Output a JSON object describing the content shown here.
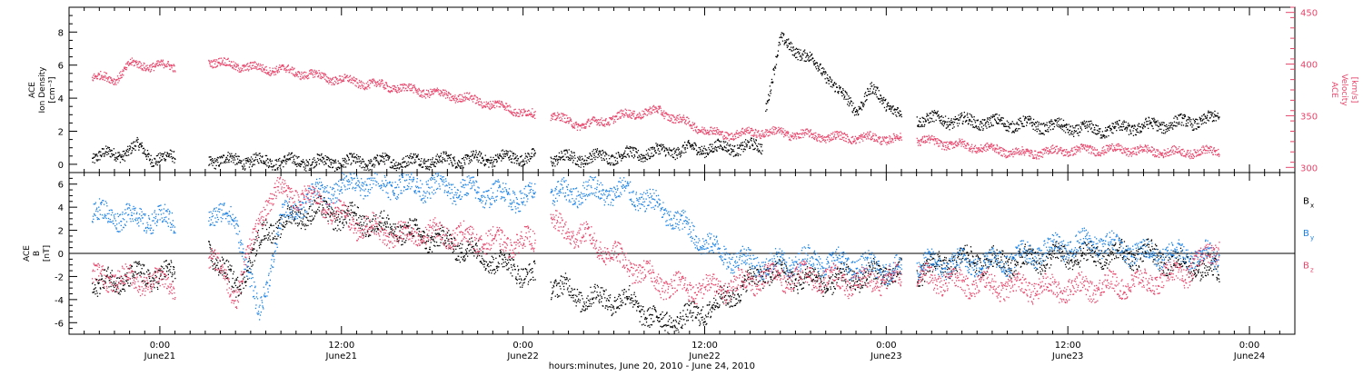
{
  "chart_data": {
    "type": "scatter",
    "x_axis": {
      "label": "hours:minutes, June 20, 2010 - June 24, 2010",
      "range_hours": [
        -6,
        75
      ],
      "ticks": [
        {
          "h": 0,
          "time": "0:00",
          "date": "June21"
        },
        {
          "h": 12,
          "time": "12:00",
          "date": "June21"
        },
        {
          "h": 24,
          "time": "0:00",
          "date": "June22"
        },
        {
          "h": 36,
          "time": "12:00",
          "date": "June22"
        },
        {
          "h": 48,
          "time": "0:00",
          "date": "June23"
        },
        {
          "h": 60,
          "time": "12:00",
          "date": "June23"
        },
        {
          "h": 72,
          "time": "0:00",
          "date": "June24"
        }
      ]
    },
    "panels": [
      {
        "name": "plasma",
        "left_axis": {
          "label_lines": [
            "ACE",
            "Ion Density"
          ],
          "unit": "[cm⁻³]",
          "range": [
            -0.5,
            9.5
          ],
          "ticks": [
            0,
            2,
            4,
            6,
            8
          ],
          "color": "#000000"
        },
        "right_axis": {
          "label_lines": [
            "ACE",
            "Velocity"
          ],
          "unit": "[km/s]",
          "range": [
            295,
            455
          ],
          "ticks": [
            300,
            350,
            400,
            450
          ],
          "color": "#e8456b"
        },
        "series": [
          {
            "axis": "left",
            "color": "#000000",
            "segments": [
              {
                "t0": -4.5,
                "t1": 1.0,
                "points": [
                  [
                    -4.5,
                    0.5
                  ],
                  [
                    -2.5,
                    0.7
                  ],
                  [
                    -1.5,
                    1.1
                  ],
                  [
                    -0.5,
                    0.4
                  ],
                  [
                    1.0,
                    0.4
                  ]
                ]
              },
              {
                "t0": 3.2,
                "t1": 24.8,
                "points": [
                  [
                    3.2,
                    0.3
                  ],
                  [
                    8,
                    0.2
                  ],
                  [
                    12,
                    0.15
                  ],
                  [
                    16,
                    0.2
                  ],
                  [
                    20,
                    0.3
                  ],
                  [
                    24.8,
                    0.5
                  ]
                ]
              },
              {
                "t0": 25.8,
                "t1": 39.8,
                "points": [
                  [
                    25.8,
                    0.4
                  ],
                  [
                    28,
                    0.4
                  ],
                  [
                    31,
                    0.6
                  ],
                  [
                    33,
                    0.8
                  ],
                  [
                    36,
                    1.0
                  ],
                  [
                    39.8,
                    1.1
                  ]
                ]
              },
              {
                "t0": 40.0,
                "t1": 49.0,
                "points": [
                  [
                    40.0,
                    3.5
                  ],
                  [
                    41,
                    7.5
                  ],
                  [
                    42,
                    7.0
                  ],
                  [
                    43,
                    6.3
                  ],
                  [
                    44,
                    5.5
                  ],
                  [
                    45,
                    4.2
                  ],
                  [
                    46,
                    3.4
                  ],
                  [
                    47,
                    4.5
                  ],
                  [
                    49.0,
                    3.0
                  ]
                ]
              },
              {
                "t0": 50.0,
                "t1": 70.0,
                "points": [
                  [
                    50.0,
                    2.8
                  ],
                  [
                    54,
                    2.6
                  ],
                  [
                    58,
                    2.4
                  ],
                  [
                    62,
                    2.1
                  ],
                  [
                    66,
                    2.4
                  ],
                  [
                    70,
                    2.8
                  ]
                ]
              }
            ]
          },
          {
            "axis": "right",
            "color": "#e8456b",
            "segments": [
              {
                "t0": -4.5,
                "t1": 1.0,
                "points": [
                  [
                    -4.5,
                    388
                  ],
                  [
                    -3,
                    386
                  ],
                  [
                    -2,
                    400
                  ],
                  [
                    1.0,
                    398
                  ]
                ]
              },
              {
                "t0": 3.2,
                "t1": 24.8,
                "points": [
                  [
                    3.2,
                    403
                  ],
                  [
                    6,
                    397
                  ],
                  [
                    8,
                    395
                  ],
                  [
                    12,
                    385
                  ],
                  [
                    16,
                    377
                  ],
                  [
                    20,
                    368
                  ],
                  [
                    23,
                    358
                  ],
                  [
                    24.8,
                    350
                  ]
                ]
              },
              {
                "t0": 25.8,
                "t1": 49.0,
                "points": [
                  [
                    25.8,
                    350
                  ],
                  [
                    28,
                    341
                  ],
                  [
                    31,
                    352
                  ],
                  [
                    33,
                    355
                  ],
                  [
                    35,
                    342
                  ],
                  [
                    37,
                    332
                  ],
                  [
                    40,
                    335
                  ],
                  [
                    44,
                    330
                  ],
                  [
                    49.0,
                    328
                  ]
                ]
              },
              {
                "t0": 50.0,
                "t1": 70.0,
                "points": [
                  [
                    50.0,
                    327
                  ],
                  [
                    54,
                    320
                  ],
                  [
                    57,
                    314
                  ],
                  [
                    60,
                    317
                  ],
                  [
                    63,
                    318
                  ],
                  [
                    67,
                    315
                  ],
                  [
                    70,
                    316
                  ]
                ]
              }
            ]
          }
        ]
      },
      {
        "name": "magnetic",
        "left_axis": {
          "label_lines": [
            "ACE",
            "B"
          ],
          "unit": "[nT]",
          "range": [
            -7,
            7
          ],
          "ticks": [
            -6,
            -4,
            -2,
            0,
            2,
            4,
            6
          ],
          "color": "#000000"
        },
        "zero_line": true,
        "legend": [
          {
            "label": "B",
            "sub": "x",
            "color": "#000000"
          },
          {
            "label": "B",
            "sub": "y",
            "color": "#1a82e8"
          },
          {
            "label": "B",
            "sub": "z",
            "color": "#e8456b"
          }
        ],
        "series": [
          {
            "axis": "left",
            "color": "#000000",
            "segments": [
              {
                "t0": -4.5,
                "t1": 1.0,
                "points": [
                  [
                    -4.5,
                    -2.8
                  ],
                  [
                    -2,
                    -2.0
                  ],
                  [
                    1.0,
                    -1.8
                  ]
                ]
              },
              {
                "t0": 3.2,
                "t1": 24.8,
                "points": [
                  [
                    3.2,
                    0.5
                  ],
                  [
                    5,
                    -3.0
                  ],
                  [
                    7,
                    2.0
                  ],
                  [
                    10,
                    3.8
                  ],
                  [
                    13,
                    3.0
                  ],
                  [
                    16,
                    2.0
                  ],
                  [
                    19,
                    1.0
                  ],
                  [
                    22,
                    -0.5
                  ],
                  [
                    24.8,
                    -2.0
                  ]
                ]
              },
              {
                "t0": 25.8,
                "t1": 49.0,
                "points": [
                  [
                    25.8,
                    -2.5
                  ],
                  [
                    28,
                    -3.8
                  ],
                  [
                    31,
                    -4.0
                  ],
                  [
                    33,
                    -6.0
                  ],
                  [
                    35,
                    -5.5
                  ],
                  [
                    37,
                    -4.2
                  ],
                  [
                    40,
                    -1.5
                  ],
                  [
                    44,
                    -2.5
                  ],
                  [
                    46,
                    -2.0
                  ],
                  [
                    49.0,
                    -1.5
                  ]
                ]
              },
              {
                "t0": 50.0,
                "t1": 70.0,
                "points": [
                  [
                    50.0,
                    -1.5
                  ],
                  [
                    53,
                    -0.5
                  ],
                  [
                    56,
                    -0.7
                  ],
                  [
                    59,
                    -0.3
                  ],
                  [
                    62,
                    -0.1
                  ],
                  [
                    65,
                    0.0
                  ],
                  [
                    68,
                    -1.0
                  ],
                  [
                    70,
                    -1.6
                  ]
                ]
              }
            ]
          },
          {
            "axis": "left",
            "color": "#1a82e8",
            "segments": [
              {
                "t0": -4.5,
                "t1": 1.0,
                "points": [
                  [
                    -4.5,
                    3.5
                  ],
                  [
                    -2,
                    3.2
                  ],
                  [
                    1.0,
                    2.8
                  ]
                ]
              },
              {
                "t0": 3.2,
                "t1": 24.8,
                "points": [
                  [
                    3.2,
                    3.5
                  ],
                  [
                    5,
                    3.0
                  ],
                  [
                    6.5,
                    -5.5
                  ],
                  [
                    8,
                    3.0
                  ],
                  [
                    10,
                    5.0
                  ],
                  [
                    13,
                    6.2
                  ],
                  [
                    16,
                    6.0
                  ],
                  [
                    19,
                    5.7
                  ],
                  [
                    22,
                    5.2
                  ],
                  [
                    24.8,
                    4.8
                  ]
                ]
              },
              {
                "t0": 25.8,
                "t1": 49.0,
                "points": [
                  [
                    25.8,
                    5.0
                  ],
                  [
                    28,
                    5.5
                  ],
                  [
                    31,
                    5.3
                  ],
                  [
                    33,
                    4.0
                  ],
                  [
                    35,
                    2.0
                  ],
                  [
                    37,
                    0.0
                  ],
                  [
                    40,
                    -1.0
                  ],
                  [
                    43,
                    -0.5
                  ],
                  [
                    46,
                    -1.0
                  ],
                  [
                    49.0,
                    -1.5
                  ]
                ]
              },
              {
                "t0": 50.0,
                "t1": 70.0,
                "points": [
                  [
                    50.0,
                    -1.0
                  ],
                  [
                    53,
                    -0.8
                  ],
                  [
                    56,
                    -0.5
                  ],
                  [
                    59,
                    0.5
                  ],
                  [
                    62,
                    1.0
                  ],
                  [
                    65,
                    0.0
                  ],
                  [
                    68,
                    0.0
                  ],
                  [
                    70,
                    -0.3
                  ]
                ]
              }
            ]
          },
          {
            "axis": "left",
            "color": "#e8456b",
            "segments": [
              {
                "t0": -4.5,
                "t1": 1.0,
                "points": [
                  [
                    -4.5,
                    -2.0
                  ],
                  [
                    -2,
                    -2.2
                  ],
                  [
                    1.0,
                    -2.5
                  ]
                ]
              },
              {
                "t0": 3.2,
                "t1": 24.8,
                "points": [
                  [
                    3.2,
                    0.0
                  ],
                  [
                    5,
                    -3.5
                  ],
                  [
                    7,
                    4.5
                  ],
                  [
                    8,
                    5.6
                  ],
                  [
                    10,
                    4.8
                  ],
                  [
                    13,
                    2.5
                  ],
                  [
                    16,
                    1.5
                  ],
                  [
                    19,
                    1.8
                  ],
                  [
                    22,
                    1.0
                  ],
                  [
                    24.8,
                    1.0
                  ]
                ]
              },
              {
                "t0": 25.8,
                "t1": 49.0,
                "points": [
                  [
                    25.8,
                    2.5
                  ],
                  [
                    28,
                    1.5
                  ],
                  [
                    31,
                    -1.0
                  ],
                  [
                    33,
                    -2.5
                  ],
                  [
                    35,
                    -3.0
                  ],
                  [
                    37,
                    -3.0
                  ],
                  [
                    40,
                    -2.0
                  ],
                  [
                    43,
                    -2.0
                  ],
                  [
                    46,
                    -2.5
                  ],
                  [
                    49.0,
                    -2.0
                  ]
                ]
              },
              {
                "t0": 50.0,
                "t1": 70.0,
                "points": [
                  [
                    50.0,
                    -2.0
                  ],
                  [
                    53,
                    -2.5
                  ],
                  [
                    56,
                    -2.8
                  ],
                  [
                    59,
                    -3.0
                  ],
                  [
                    62,
                    -2.8
                  ],
                  [
                    65,
                    -2.5
                  ],
                  [
                    68,
                    -1.5
                  ],
                  [
                    70,
                    0.8
                  ]
                ]
              }
            ]
          }
        ]
      }
    ]
  }
}
